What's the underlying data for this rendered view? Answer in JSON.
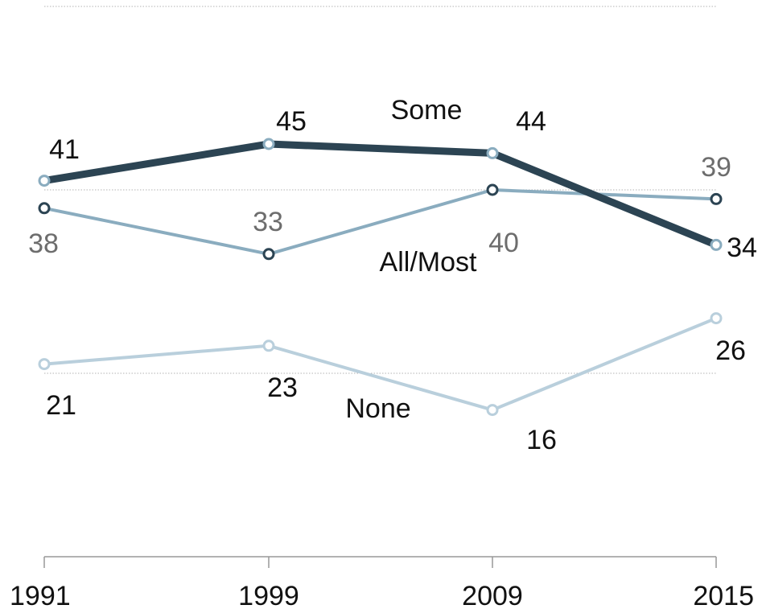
{
  "colors": {
    "some": "#2c4453",
    "all_most": "#8aacbf",
    "none": "#b9cfdc",
    "grid": "#b3b3b3",
    "axis": "#999999",
    "dark_text": "#111111",
    "gray_text": "#6d6d6d"
  },
  "chart_data": {
    "type": "line",
    "x": [
      "1991",
      "1999",
      "2009",
      "2015"
    ],
    "ylim": [
      0,
      60
    ],
    "grid": true,
    "gridlines": [
      0,
      20,
      40,
      60
    ],
    "series": [
      {
        "name": "Some",
        "key": "some",
        "values": [
          41,
          45,
          44,
          34
        ]
      },
      {
        "name": "All/Most",
        "key": "all_most",
        "values": [
          38,
          33,
          40,
          39
        ]
      },
      {
        "name": "None",
        "key": "none",
        "values": [
          21,
          23,
          16,
          26
        ]
      }
    ]
  }
}
